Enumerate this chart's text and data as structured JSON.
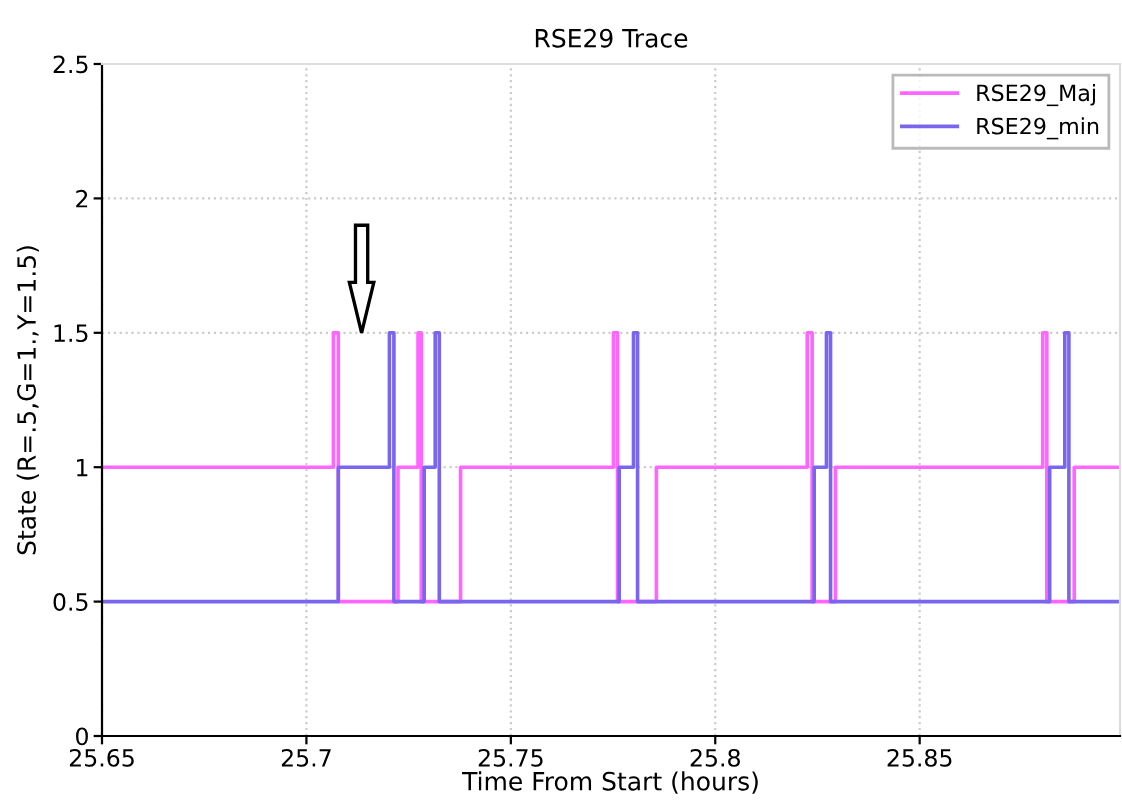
{
  "chart_data": {
    "type": "step",
    "title": "RSE29 Trace",
    "xlabel": "Time From Start (hours)",
    "ylabel": "State (R=.5,G=1.,Y=1.5)",
    "xlim": [
      25.65,
      25.899
    ],
    "xticks": [
      25.65,
      25.7,
      25.75,
      25.8,
      25.85
    ],
    "ylim": [
      0,
      2.5
    ],
    "yticks": [
      0,
      0.5,
      1,
      1.5,
      2,
      2.5
    ],
    "grid": true,
    "legend": "top right",
    "series": [
      {
        "name": "RSE29_Maj",
        "color": "#ff66ff",
        "x": [
          25.65,
          25.7066,
          25.7078,
          25.7224,
          25.7273,
          25.7281,
          25.7377,
          25.7751,
          25.7761,
          25.7856,
          25.8225,
          25.8237,
          25.8294,
          25.8801,
          25.8811,
          25.8878,
          25.899
        ],
        "values": [
          1,
          1.5,
          0.5,
          1,
          1.5,
          0.5,
          1,
          1.5,
          0.5,
          1,
          1.5,
          0.5,
          1,
          1.5,
          0.5,
          1,
          1
        ]
      },
      {
        "name": "RSE29_min",
        "color": "#7a66ee",
        "x": [
          25.65,
          25.7078,
          25.7203,
          25.7214,
          25.7288,
          25.7315,
          25.7325,
          25.7765,
          25.78,
          25.781,
          25.8242,
          25.8272,
          25.8282,
          25.8818,
          25.8855,
          25.8865,
          25.899
        ],
        "values": [
          0.5,
          1,
          1.5,
          0.5,
          1,
          1.5,
          0.5,
          1,
          1.5,
          0.5,
          1,
          1.5,
          0.5,
          1,
          1.5,
          0.5,
          0.5
        ]
      }
    ]
  }
}
